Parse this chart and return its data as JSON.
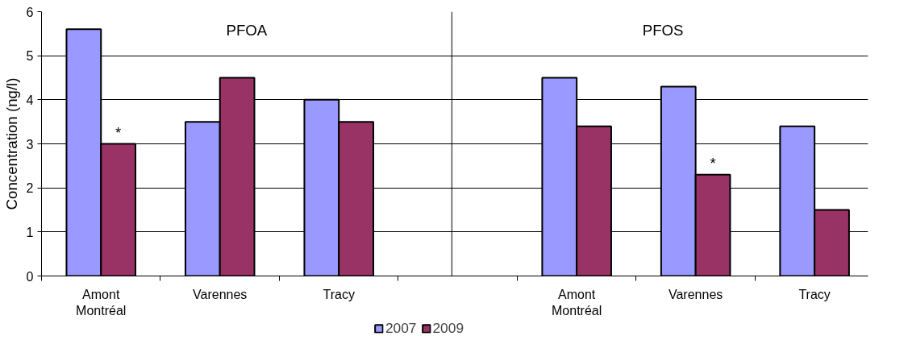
{
  "chart_data": {
    "type": "bar",
    "ylabel": "Concentration (ng/l)",
    "categories": [
      "Amont Montréal",
      "Varennes",
      "Tracy",
      null,
      "Amont Montréal",
      "Varennes",
      "Tracy"
    ],
    "series": [
      {
        "name": "2007",
        "color": "#9999ff",
        "values": [
          5.6,
          3.5,
          4.0,
          null,
          4.5,
          4.3,
          3.4
        ]
      },
      {
        "name": "2009",
        "color": "#993366",
        "values": [
          3.0,
          4.5,
          3.5,
          null,
          3.4,
          2.3,
          1.5
        ],
        "value_labels": [
          "*",
          null,
          null,
          null,
          null,
          "*",
          null
        ]
      }
    ],
    "annotations": [
      "PFOA",
      "PFOS"
    ],
    "ylim": [
      0,
      6
    ],
    "yticks": [
      0,
      1,
      2,
      3,
      4,
      5,
      6
    ],
    "grid": "y",
    "legend": "bottom"
  }
}
